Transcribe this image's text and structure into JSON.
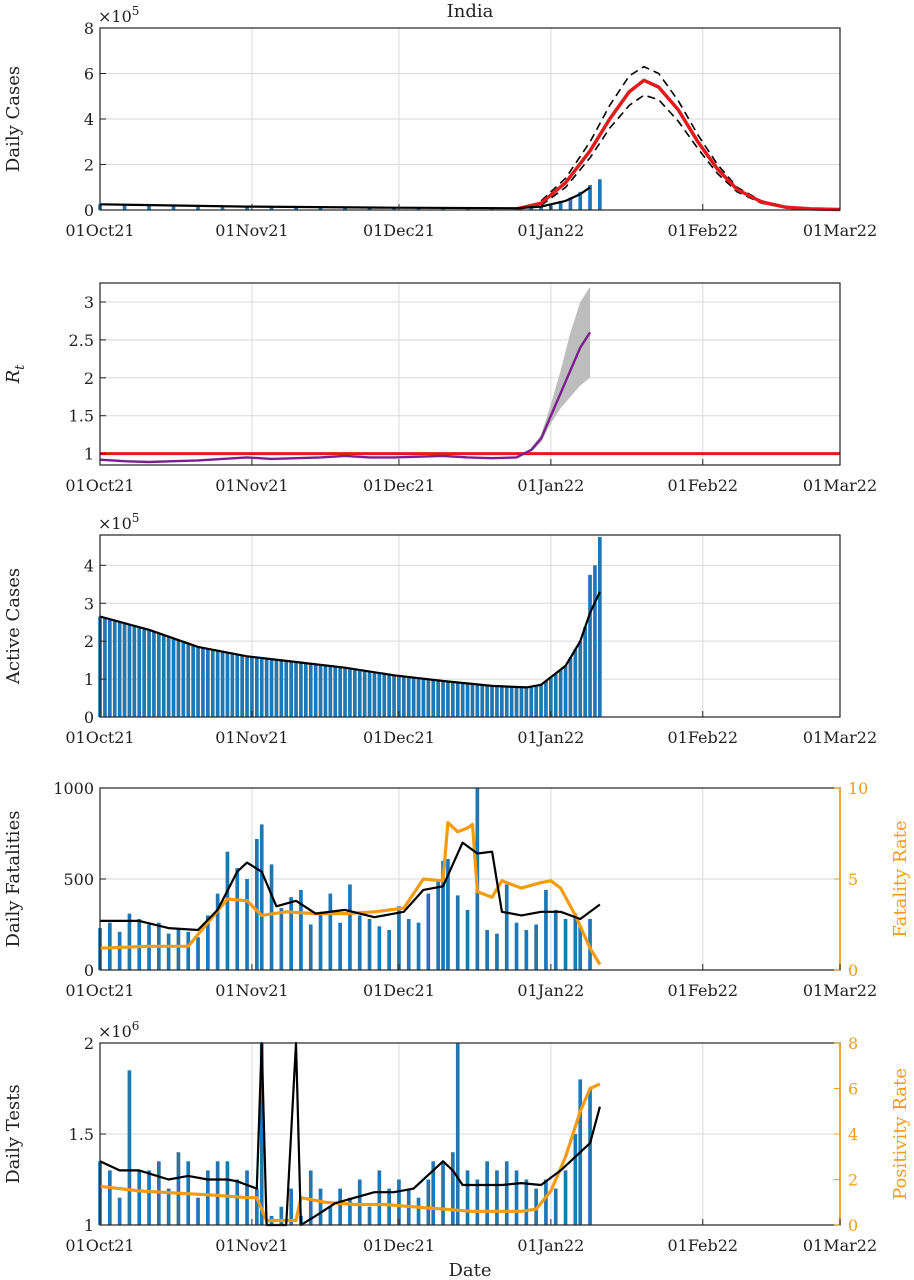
{
  "title": "India",
  "xlabel": "Date",
  "x_ticks": [
    "01Oct21",
    "01Nov21",
    "01Dec21",
    "01Jan22",
    "01Feb22",
    "01Mar22"
  ],
  "colors": {
    "bars": "#1f77b4",
    "fit": "#e31a1c",
    "rt": "#7b1f8f",
    "band": "#bdbdbd",
    "rate": "#f39c12",
    "smooth": "#000000"
  },
  "chart_data": [
    {
      "type": "bar",
      "name": "cases",
      "ylabel": "Daily Cases",
      "exponent": "×10^5",
      "ylim": [
        0,
        8
      ],
      "yticks": [
        "0",
        "2",
        "4",
        "6",
        "8"
      ],
      "bars": [
        [
          0,
          0.25
        ],
        [
          5,
          0.22
        ],
        [
          10,
          0.2
        ],
        [
          15,
          0.18
        ],
        [
          20,
          0.16
        ],
        [
          25,
          0.15
        ],
        [
          30,
          0.14
        ],
        [
          35,
          0.13
        ],
        [
          40,
          0.12
        ],
        [
          45,
          0.11
        ],
        [
          50,
          0.1
        ],
        [
          55,
          0.09
        ],
        [
          60,
          0.08
        ],
        [
          65,
          0.08
        ],
        [
          70,
          0.07
        ],
        [
          75,
          0.07
        ],
        [
          80,
          0.07
        ],
        [
          85,
          0.08
        ],
        [
          88,
          0.1
        ],
        [
          90,
          0.15
        ],
        [
          92,
          0.25
        ],
        [
          94,
          0.4
        ],
        [
          96,
          0.55
        ],
        [
          98,
          0.8
        ],
        [
          100,
          1.1
        ],
        [
          102,
          1.35
        ]
      ],
      "smooth": [
        [
          0,
          0.25
        ],
        [
          30,
          0.15
        ],
        [
          60,
          0.1
        ],
        [
          85,
          0.08
        ],
        [
          90,
          0.15
        ],
        [
          95,
          0.4
        ],
        [
          98,
          0.7
        ],
        [
          100,
          1.0
        ]
      ],
      "fit": [
        [
          85,
          0.05
        ],
        [
          90,
          0.3
        ],
        [
          95,
          1.2
        ],
        [
          100,
          2.6
        ],
        [
          104,
          4.0
        ],
        [
          108,
          5.2
        ],
        [
          111,
          5.7
        ],
        [
          114,
          5.4
        ],
        [
          118,
          4.4
        ],
        [
          122,
          3.0
        ],
        [
          126,
          1.8
        ],
        [
          130,
          0.9
        ],
        [
          135,
          0.35
        ],
        [
          140,
          0.12
        ],
        [
          145,
          0.05
        ],
        [
          151,
          0.02
        ]
      ],
      "fit_upper": [
        [
          90,
          0.4
        ],
        [
          95,
          1.4
        ],
        [
          100,
          3.0
        ],
        [
          104,
          4.6
        ],
        [
          108,
          5.9
        ],
        [
          111,
          6.3
        ],
        [
          114,
          6.0
        ],
        [
          118,
          4.8
        ],
        [
          122,
          3.3
        ],
        [
          126,
          2.0
        ],
        [
          130,
          1.0
        ],
        [
          135,
          0.4
        ],
        [
          140,
          0.15
        ]
      ],
      "fit_lower": [
        [
          90,
          0.2
        ],
        [
          95,
          1.0
        ],
        [
          100,
          2.3
        ],
        [
          104,
          3.6
        ],
        [
          108,
          4.6
        ],
        [
          111,
          5.05
        ],
        [
          114,
          4.85
        ],
        [
          118,
          3.9
        ],
        [
          122,
          2.7
        ],
        [
          126,
          1.6
        ],
        [
          130,
          0.8
        ],
        [
          135,
          0.3
        ],
        [
          140,
          0.1
        ]
      ]
    },
    {
      "type": "line",
      "name": "rt",
      "ylabel": "R_t",
      "ylim": [
        0.85,
        3.25
      ],
      "yticks": [
        "1",
        "1.5",
        "2",
        "2.5",
        "3"
      ],
      "threshold": 1,
      "line": [
        [
          0,
          0.92
        ],
        [
          5,
          0.9
        ],
        [
          10,
          0.89
        ],
        [
          15,
          0.9
        ],
        [
          20,
          0.91
        ],
        [
          25,
          0.93
        ],
        [
          30,
          0.95
        ],
        [
          35,
          0.93
        ],
        [
          40,
          0.94
        ],
        [
          45,
          0.95
        ],
        [
          50,
          0.97
        ],
        [
          55,
          0.95
        ],
        [
          60,
          0.95
        ],
        [
          65,
          0.96
        ],
        [
          70,
          0.97
        ],
        [
          75,
          0.95
        ],
        [
          80,
          0.94
        ],
        [
          85,
          0.95
        ],
        [
          88,
          1.05
        ],
        [
          90,
          1.2
        ],
        [
          92,
          1.5
        ],
        [
          94,
          1.8
        ],
        [
          96,
          2.1
        ],
        [
          98,
          2.4
        ],
        [
          100,
          2.6
        ]
      ],
      "band_upper": [
        [
          88,
          1.08
        ],
        [
          90,
          1.25
        ],
        [
          92,
          1.65
        ],
        [
          94,
          2.1
        ],
        [
          96,
          2.6
        ],
        [
          98,
          3.0
        ],
        [
          100,
          3.2
        ]
      ],
      "band_lower": [
        [
          88,
          1.02
        ],
        [
          90,
          1.15
        ],
        [
          92,
          1.4
        ],
        [
          94,
          1.6
        ],
        [
          96,
          1.75
        ],
        [
          98,
          1.9
        ],
        [
          100,
          2.0
        ]
      ]
    },
    {
      "type": "bar",
      "name": "active",
      "ylabel": "Active Cases",
      "exponent": "×10^5",
      "ylim": [
        0,
        4.8
      ],
      "yticks": [
        "0",
        "1",
        "2",
        "3",
        "4"
      ],
      "smooth": [
        [
          0,
          2.65
        ],
        [
          10,
          2.3
        ],
        [
          20,
          1.85
        ],
        [
          30,
          1.6
        ],
        [
          40,
          1.45
        ],
        [
          50,
          1.3
        ],
        [
          60,
          1.1
        ],
        [
          70,
          0.95
        ],
        [
          80,
          0.82
        ],
        [
          87,
          0.78
        ],
        [
          90,
          0.85
        ],
        [
          95,
          1.35
        ],
        [
          98,
          2.0
        ],
        [
          100,
          2.75
        ],
        [
          102,
          3.3
        ]
      ]
    },
    {
      "type": "bar",
      "name": "fatalities",
      "ylabel": "Daily Fatalities",
      "ylabel_right": "Fatality Rate",
      "ylim": [
        0,
        1000
      ],
      "yticks": [
        "0",
        "500",
        "1000"
      ],
      "ylim_right": [
        0,
        10
      ],
      "yticks_right": [
        "0",
        "5",
        "10"
      ],
      "bars": [
        [
          0,
          230
        ],
        [
          2,
          260
        ],
        [
          4,
          210
        ],
        [
          6,
          310
        ],
        [
          8,
          280
        ],
        [
          10,
          250
        ],
        [
          12,
          260
        ],
        [
          14,
          200
        ],
        [
          16,
          230
        ],
        [
          18,
          210
        ],
        [
          20,
          180
        ],
        [
          22,
          300
        ],
        [
          24,
          420
        ],
        [
          26,
          650
        ],
        [
          28,
          560
        ],
        [
          30,
          500
        ],
        [
          32,
          720
        ],
        [
          33,
          800
        ],
        [
          35,
          580
        ],
        [
          37,
          340
        ],
        [
          39,
          400
        ],
        [
          41,
          440
        ],
        [
          43,
          250
        ],
        [
          45,
          320
        ],
        [
          47,
          420
        ],
        [
          49,
          260
        ],
        [
          51,
          470
        ],
        [
          53,
          300
        ],
        [
          55,
          280
        ],
        [
          57,
          240
        ],
        [
          59,
          220
        ],
        [
          61,
          350
        ],
        [
          63,
          280
        ],
        [
          65,
          260
        ],
        [
          67,
          420
        ],
        [
          69,
          500
        ],
        [
          70,
          600
        ],
        [
          71,
          610
        ],
        [
          73,
          410
        ],
        [
          75,
          330
        ],
        [
          77,
          1000
        ],
        [
          79,
          220
        ],
        [
          81,
          200
        ],
        [
          83,
          470
        ],
        [
          85,
          260
        ],
        [
          87,
          220
        ],
        [
          89,
          250
        ],
        [
          91,
          440
        ],
        [
          93,
          330
        ],
        [
          95,
          280
        ],
        [
          97,
          310
        ],
        [
          98,
          240
        ],
        [
          100,
          280
        ]
      ],
      "smooth": [
        [
          0,
          270
        ],
        [
          8,
          270
        ],
        [
          14,
          230
        ],
        [
          20,
          220
        ],
        [
          24,
          330
        ],
        [
          28,
          540
        ],
        [
          30,
          590
        ],
        [
          33,
          540
        ],
        [
          36,
          350
        ],
        [
          40,
          380
        ],
        [
          44,
          310
        ],
        [
          50,
          330
        ],
        [
          56,
          290
        ],
        [
          62,
          320
        ],
        [
          66,
          440
        ],
        [
          70,
          460
        ],
        [
          74,
          700
        ],
        [
          77,
          640
        ],
        [
          80,
          650
        ],
        [
          82,
          320
        ],
        [
          86,
          300
        ],
        [
          90,
          320
        ],
        [
          94,
          320
        ],
        [
          98,
          280
        ],
        [
          102,
          360
        ]
      ],
      "rate": [
        [
          0,
          1.2
        ],
        [
          10,
          1.3
        ],
        [
          18,
          1.3
        ],
        [
          22,
          2.6
        ],
        [
          26,
          3.9
        ],
        [
          30,
          3.8
        ],
        [
          33,
          3.0
        ],
        [
          38,
          3.2
        ],
        [
          44,
          3.1
        ],
        [
          50,
          3.1
        ],
        [
          56,
          3.2
        ],
        [
          62,
          3.4
        ],
        [
          66,
          5.0
        ],
        [
          70,
          4.9
        ],
        [
          71,
          8.1
        ],
        [
          73,
          7.6
        ],
        [
          75,
          7.8
        ],
        [
          76,
          8.0
        ],
        [
          77,
          4.3
        ],
        [
          80,
          4.0
        ],
        [
          82,
          4.9
        ],
        [
          86,
          4.5
        ],
        [
          90,
          4.8
        ],
        [
          92,
          4.9
        ],
        [
          94,
          4.5
        ],
        [
          97,
          3.0
        ],
        [
          100,
          1.2
        ],
        [
          102,
          0.3
        ]
      ]
    },
    {
      "type": "bar",
      "name": "tests",
      "ylabel": "Daily Tests",
      "ylabel_right": "Positivity Rate",
      "exponent": "×10^6",
      "xlabel": "Date",
      "ylim": [
        1,
        2
      ],
      "yticks": [
        "1",
        "1.5",
        "2"
      ],
      "ylim_right": [
        0,
        8
      ],
      "yticks_right": [
        "0",
        "2",
        "4",
        "6",
        "8"
      ],
      "bars": [
        [
          0,
          1.35
        ],
        [
          2,
          1.3
        ],
        [
          4,
          1.15
        ],
        [
          6,
          1.85
        ],
        [
          8,
          1.3
        ],
        [
          10,
          1.3
        ],
        [
          12,
          1.35
        ],
        [
          14,
          1.2
        ],
        [
          16,
          1.4
        ],
        [
          18,
          1.35
        ],
        [
          20,
          1.15
        ],
        [
          22,
          1.3
        ],
        [
          24,
          1.35
        ],
        [
          26,
          1.35
        ],
        [
          28,
          1.25
        ],
        [
          30,
          1.3
        ],
        [
          32,
          1.2
        ],
        [
          33,
          2.0
        ],
        [
          35,
          1.05
        ],
        [
          37,
          1.1
        ],
        [
          39,
          1.2
        ],
        [
          41,
          1.05
        ],
        [
          43,
          1.3
        ],
        [
          45,
          1.2
        ],
        [
          47,
          1.1
        ],
        [
          49,
          1.2
        ],
        [
          51,
          1.15
        ],
        [
          53,
          1.25
        ],
        [
          55,
          1.1
        ],
        [
          57,
          1.3
        ],
        [
          59,
          1.2
        ],
        [
          61,
          1.25
        ],
        [
          63,
          1.2
        ],
        [
          65,
          1.15
        ],
        [
          67,
          1.25
        ],
        [
          68,
          1.35
        ],
        [
          70,
          1.35
        ],
        [
          72,
          1.4
        ],
        [
          73,
          2.0
        ],
        [
          75,
          1.3
        ],
        [
          77,
          1.25
        ],
        [
          79,
          1.35
        ],
        [
          81,
          1.3
        ],
        [
          83,
          1.35
        ],
        [
          85,
          1.3
        ],
        [
          87,
          1.25
        ],
        [
          89,
          1.2
        ],
        [
          91,
          1.25
        ],
        [
          93,
          1.2
        ],
        [
          95,
          1.3
        ],
        [
          97,
          1.5
        ],
        [
          98,
          1.8
        ],
        [
          100,
          1.75
        ]
      ],
      "smooth": [
        [
          0,
          1.35
        ],
        [
          4,
          1.3
        ],
        [
          8,
          1.3
        ],
        [
          14,
          1.25
        ],
        [
          18,
          1.27
        ],
        [
          22,
          1.25
        ],
        [
          26,
          1.25
        ],
        [
          28,
          1.24
        ],
        [
          30,
          1.22
        ],
        [
          32,
          1.2
        ],
        [
          33,
          2.0
        ],
        [
          34,
          1.0
        ],
        [
          36,
          1.0
        ],
        [
          38,
          1.0
        ],
        [
          40,
          2.0
        ],
        [
          41,
          1.0
        ],
        [
          44,
          1.05
        ],
        [
          48,
          1.12
        ],
        [
          52,
          1.15
        ],
        [
          56,
          1.18
        ],
        [
          60,
          1.18
        ],
        [
          64,
          1.2
        ],
        [
          68,
          1.3
        ],
        [
          70,
          1.35
        ],
        [
          72,
          1.3
        ],
        [
          74,
          1.22
        ],
        [
          78,
          1.22
        ],
        [
          82,
          1.22
        ],
        [
          86,
          1.23
        ],
        [
          90,
          1.22
        ],
        [
          94,
          1.3
        ],
        [
          98,
          1.4
        ],
        [
          100,
          1.45
        ],
        [
          102,
          1.65
        ]
      ],
      "rate": [
        [
          0,
          1.7
        ],
        [
          8,
          1.5
        ],
        [
          16,
          1.4
        ],
        [
          24,
          1.3
        ],
        [
          30,
          1.2
        ],
        [
          32,
          1.2
        ],
        [
          34,
          0.2
        ],
        [
          38,
          0.2
        ],
        [
          40,
          0.2
        ],
        [
          41,
          1.2
        ],
        [
          46,
          1.0
        ],
        [
          52,
          0.9
        ],
        [
          58,
          0.9
        ],
        [
          64,
          0.8
        ],
        [
          70,
          0.7
        ],
        [
          76,
          0.6
        ],
        [
          82,
          0.6
        ],
        [
          86,
          0.6
        ],
        [
          89,
          0.7
        ],
        [
          92,
          1.5
        ],
        [
          95,
          3.0
        ],
        [
          98,
          5.0
        ],
        [
          100,
          6.0
        ],
        [
          102,
          6.2
        ]
      ]
    }
  ]
}
